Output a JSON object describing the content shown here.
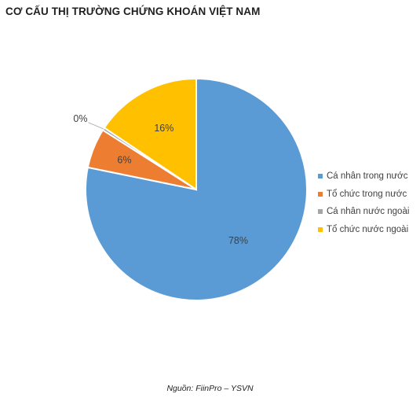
{
  "chart_data": {
    "type": "pie",
    "title": "CƠ CẤU THỊ TRƯỜNG CHỨNG KHOÁN VIỆT NAM",
    "categories": [
      "Cá nhân trong nước",
      "Tổ chức trong nước",
      "Cá nhân nước ngoài",
      "Tổ chức nước ngoài"
    ],
    "values": [
      78,
      6,
      0,
      16
    ],
    "labels": [
      "78%",
      "6%",
      "0%",
      "16%"
    ],
    "colors": [
      "#5B9BD5",
      "#ED7D31",
      "#A5A5A5",
      "#FFC000"
    ],
    "legend_position": "right",
    "source": "Nguồn: FiinPro – YSVN"
  }
}
